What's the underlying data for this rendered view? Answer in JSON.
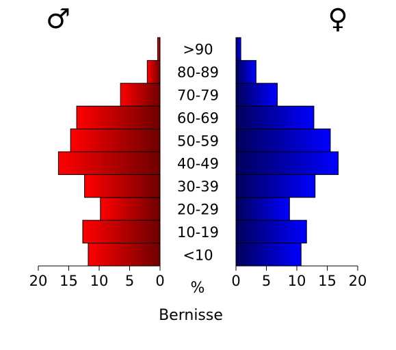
{
  "chart_data": {
    "type": "bar",
    "subtype": "population-pyramid",
    "title": "",
    "xlabel": "Bernisse",
    "unit_label": "%",
    "categories": [
      "<10",
      "10-19",
      "20-29",
      "30-39",
      "40-49",
      "50-59",
      "60-69",
      "70-79",
      "80-89",
      ">90"
    ],
    "series": [
      {
        "name": "male",
        "symbol": "♂",
        "side": "left",
        "color_light": "#ff0000",
        "color_dark": "#6e0000",
        "values": [
          11.8,
          12.7,
          9.8,
          12.4,
          16.7,
          14.7,
          13.7,
          6.5,
          2.1,
          0.4
        ]
      },
      {
        "name": "female",
        "symbol": "♀",
        "side": "right",
        "color_light": "#0000ff",
        "color_dark": "#00005a",
        "values": [
          10.7,
          11.6,
          8.8,
          13.0,
          16.8,
          15.5,
          12.8,
          6.8,
          3.3,
          0.8
        ]
      }
    ],
    "xlim": [
      0,
      20
    ],
    "ticks": [
      0,
      5,
      10,
      15,
      20
    ],
    "grid": false,
    "legend": "none"
  }
}
